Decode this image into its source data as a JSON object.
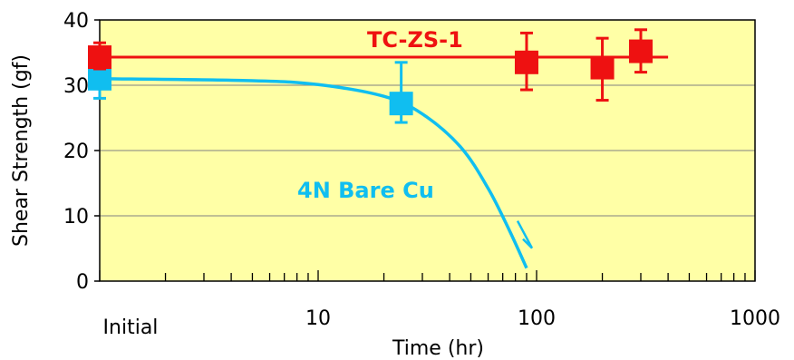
{
  "chart_data": {
    "type": "scatter",
    "xlabel": "Time (hr)",
    "ylabel": "Shear Strength (gf)",
    "x_scale": "log",
    "xlim": [
      1,
      1000
    ],
    "ylim": [
      0,
      40
    ],
    "x_tick_labels": [
      {
        "x": 1,
        "label": "Initial"
      },
      {
        "x": 10,
        "label": "10"
      },
      {
        "x": 100,
        "label": "100"
      },
      {
        "x": 1000,
        "label": "1000"
      }
    ],
    "y_ticks": [
      0,
      10,
      20,
      30,
      40
    ],
    "grid": "horizontal",
    "plot_background": "#FFFFA6",
    "series": [
      {
        "name": "TC-ZS-1",
        "color": "#EE1111",
        "marker": "square",
        "points": [
          {
            "x": 1,
            "y": 34.3,
            "err_low": 32.5,
            "err_high": 36.5
          },
          {
            "x": 90,
            "y": 33.5,
            "err_low": 29.3,
            "err_high": 38.0
          },
          {
            "x": 200,
            "y": 32.7,
            "err_low": 27.7,
            "err_high": 37.2
          },
          {
            "x": 300,
            "y": 35.2,
            "err_low": 32.0,
            "err_high": 38.5
          }
        ],
        "trend": {
          "type": "line",
          "x": [
            1,
            400
          ],
          "y": [
            34.3,
            34.3
          ]
        }
      },
      {
        "name": "4N Bare Cu",
        "color": "#10BEF0",
        "marker": "square",
        "points": [
          {
            "x": 1,
            "y": 31.0,
            "err_low": 28.0,
            "err_high": 34.0
          },
          {
            "x": 24,
            "y": 27.2,
            "err_low": 24.3,
            "err_high": 33.5
          }
        ],
        "trend": {
          "type": "curve",
          "x": [
            1,
            5,
            10,
            20,
            30,
            45,
            60,
            75,
            90
          ],
          "y": [
            31.0,
            30.7,
            30.1,
            28.3,
            25.6,
            20.5,
            14.2,
            7.8,
            2.0
          ]
        }
      }
    ]
  }
}
